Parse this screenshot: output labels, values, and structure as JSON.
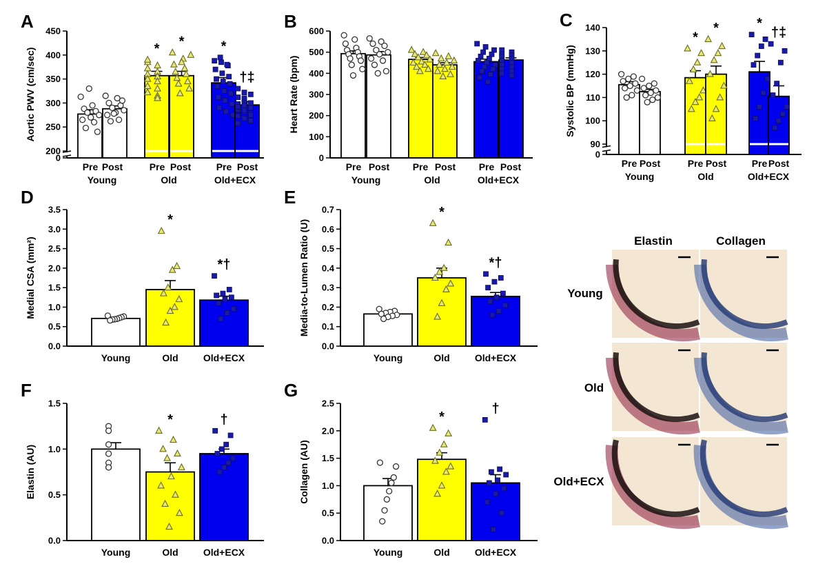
{
  "colors": {
    "Young": "#ffffff",
    "Old": "#ffff00",
    "Old+ECX": "#0000ee",
    "pt_Young": "#ffffff",
    "pt_Old": "#c8c85a",
    "pt_Old+ECX": "#1a1aa8",
    "elastin_stain": "#8a1c3c",
    "collagen_stain": "#3a5aa0",
    "tissue_bg": "#f3e7d4"
  },
  "histology": {
    "col_labels": [
      "Elastin",
      "Collagen"
    ],
    "row_labels": [
      "Young",
      "Old",
      "Old+ECX"
    ]
  },
  "chart_data": [
    {
      "panel": "A",
      "type": "bar",
      "grouped": true,
      "groups": [
        "Young",
        "Old",
        "Old+ECX"
      ],
      "conditions": [
        "Pre",
        "Post"
      ],
      "ylabel": "Aortic PWV (cm/sec)",
      "ylim": [
        200,
        450
      ],
      "yticks": [
        200,
        250,
        300,
        350,
        400,
        450
      ],
      "axis_zero_label": "0",
      "axis_break": true,
      "series": [
        {
          "group": "Young",
          "condition": "Pre",
          "mean": 277,
          "sem": 9,
          "points": [
            313,
            295,
            288,
            283,
            280,
            275,
            270,
            265,
            260,
            248,
            240,
            330
          ]
        },
        {
          "group": "Young",
          "condition": "Post",
          "mean": 288,
          "sem": 6,
          "points": [
            315,
            310,
            300,
            295,
            290,
            285,
            280,
            275,
            265,
            262,
            305,
            278
          ]
        },
        {
          "group": "Old",
          "condition": "Pre",
          "mean": 357,
          "sem": 9,
          "points": [
            385,
            378,
            372,
            365,
            360,
            355,
            350,
            345,
            335,
            330,
            322,
            315,
            390,
            310
          ]
        },
        {
          "group": "Old",
          "condition": "Post",
          "mean": 357,
          "sem": 9,
          "points": [
            405,
            392,
            380,
            372,
            365,
            360,
            352,
            345,
            340,
            330,
            320,
            400,
            385
          ]
        },
        {
          "group": "Old+ECX",
          "condition": "Pre",
          "mean": 342,
          "sem": 11,
          "points": [
            388,
            385,
            378,
            370,
            362,
            355,
            350,
            345,
            340,
            335,
            325,
            320,
            312,
            305,
            298,
            290,
            282,
            275,
            395,
            380
          ]
        },
        {
          "group": "Old+ECX",
          "condition": "Post",
          "mean": 296,
          "sem": 7,
          "points": [
            330,
            322,
            318,
            312,
            305,
            300,
            298,
            295,
            290,
            286,
            282,
            278,
            273,
            268,
            263,
            258,
            310,
            300,
            292,
            285,
            275
          ]
        }
      ],
      "significance": [
        {
          "group": "Old",
          "condition": "Pre",
          "text": "*"
        },
        {
          "group": "Old",
          "condition": "Post",
          "text": "*"
        },
        {
          "group": "Old+ECX",
          "condition": "Pre",
          "text": "*"
        },
        {
          "group": "Old+ECX",
          "condition": "Post",
          "text": "†‡"
        }
      ]
    },
    {
      "panel": "B",
      "type": "bar",
      "grouped": true,
      "groups": [
        "Young",
        "Old",
        "Old+ECX"
      ],
      "conditions": [
        "Pre",
        "Post"
      ],
      "ylabel": "Heart Rate (bpm)",
      "ylim": [
        0,
        600
      ],
      "yticks": [
        0,
        100,
        200,
        300,
        400,
        500,
        600
      ],
      "series": [
        {
          "group": "Young",
          "condition": "Pre",
          "mean": 493,
          "sem": 13,
          "points": [
            580,
            560,
            540,
            520,
            510,
            500,
            490,
            480,
            470,
            460,
            440,
            420,
            390
          ]
        },
        {
          "group": "Young",
          "condition": "Post",
          "mean": 487,
          "sem": 16,
          "points": [
            565,
            550,
            540,
            530,
            510,
            500,
            490,
            470,
            460,
            440,
            410,
            400
          ]
        },
        {
          "group": "Old",
          "condition": "Pre",
          "mean": 466,
          "sem": 9,
          "points": [
            510,
            500,
            490,
            485,
            475,
            465,
            455,
            450,
            440,
            430,
            420,
            410
          ]
        },
        {
          "group": "Old",
          "condition": "Post",
          "mean": 440,
          "sem": 10,
          "points": [
            495,
            480,
            470,
            460,
            450,
            440,
            430,
            420,
            410,
            395,
            385
          ]
        },
        {
          "group": "Old+ECX",
          "condition": "Pre",
          "mean": 455,
          "sem": 12,
          "points": [
            540,
            525,
            510,
            500,
            490,
            480,
            470,
            460,
            450,
            440,
            430,
            420,
            410,
            395,
            380,
            360
          ]
        },
        {
          "group": "Old+ECX",
          "condition": "Post",
          "mean": 463,
          "sem": 10,
          "points": [
            510,
            500,
            490,
            485,
            480,
            470,
            460,
            450,
            440,
            430,
            420,
            410,
            400,
            390
          ]
        }
      ]
    },
    {
      "panel": "C",
      "type": "bar",
      "grouped": true,
      "groups": [
        "Young",
        "Old",
        "Old+ECX"
      ],
      "conditions": [
        "Pre",
        "Post"
      ],
      "ylabel": "Systolic BP (mmHg)",
      "ylim": [
        90,
        140
      ],
      "yticks": [
        90,
        100,
        110,
        120,
        130,
        140
      ],
      "axis_zero_label": "0",
      "axis_break": true,
      "series": [
        {
          "group": "Young",
          "condition": "Pre",
          "mean": 115.5,
          "sem": 1.3,
          "points": [
            120,
            119,
            118,
            117,
            116,
            115,
            114,
            113,
            111,
            110
          ]
        },
        {
          "group": "Young",
          "condition": "Post",
          "mean": 112.5,
          "sem": 1.0,
          "points": [
            118,
            116,
            115,
            114,
            113,
            112,
            111,
            110,
            109,
            108
          ]
        },
        {
          "group": "Old",
          "condition": "Pre",
          "mean": 118.5,
          "sem": 3.0,
          "points": [
            131,
            129,
            125,
            122,
            117,
            113,
            110,
            108,
            105
          ]
        },
        {
          "group": "Old",
          "condition": "Post",
          "mean": 120,
          "sem": 3.5,
          "points": [
            135,
            132,
            129,
            126,
            120,
            115,
            110,
            105,
            101
          ]
        },
        {
          "group": "Old+ECX",
          "condition": "Pre",
          "mean": 121,
          "sem": 4.5,
          "points": [
            137,
            135,
            132,
            128,
            124,
            118,
            112,
            106,
            101
          ]
        },
        {
          "group": "Old+ECX",
          "condition": "Post",
          "mean": 110.5,
          "sem": 4.5,
          "points": [
            133,
            130,
            125,
            116,
            111,
            106,
            103,
            100,
            97
          ]
        }
      ],
      "significance": [
        {
          "group": "Old",
          "condition": "Pre",
          "text": "*"
        },
        {
          "group": "Old",
          "condition": "Post",
          "text": "*"
        },
        {
          "group": "Old+ECX",
          "condition": "Pre",
          "text": "*"
        },
        {
          "group": "Old+ECX",
          "condition": "Post",
          "text": "†‡"
        }
      ]
    },
    {
      "panel": "D",
      "type": "bar",
      "categories": [
        "Young",
        "Old",
        "Old+ECX"
      ],
      "ylabel": "Medial CSA (mm²)",
      "ylim": [
        0,
        3.5
      ],
      "yticks": [
        "0.0",
        "0.5",
        "1.0",
        "1.5",
        "2.0",
        "2.5",
        "3.0",
        "3.5"
      ],
      "series": [
        {
          "group": "Young",
          "mean": 0.71,
          "sem": 0.03,
          "points": [
            0.78,
            0.76,
            0.74,
            0.72,
            0.7,
            0.69,
            0.68,
            0.66
          ]
        },
        {
          "group": "Old",
          "mean": 1.45,
          "sem": 0.23,
          "points": [
            2.95,
            2.05,
            1.95,
            1.5,
            1.35,
            1.2,
            1.0,
            0.9,
            0.6
          ]
        },
        {
          "group": "Old+ECX",
          "mean": 1.18,
          "sem": 0.1,
          "points": [
            1.8,
            1.45,
            1.35,
            1.3,
            1.25,
            1.2,
            1.1,
            0.95,
            0.85,
            0.7
          ]
        }
      ],
      "significance": [
        {
          "group": "Old",
          "text": "*"
        },
        {
          "group": "Old+ECX",
          "text": "*†"
        }
      ]
    },
    {
      "panel": "E",
      "type": "bar",
      "categories": [
        "Young",
        "Old",
        "Old+ECX"
      ],
      "ylabel": "Media-to-Lumen Ratio (U)",
      "ylim": [
        0,
        0.7
      ],
      "yticks": [
        "0.0",
        "0.1",
        "0.2",
        "0.3",
        "0.4",
        "0.5",
        "0.6",
        "0.7"
      ],
      "series": [
        {
          "group": "Young",
          "mean": 0.165,
          "sem": 0.007,
          "points": [
            0.19,
            0.18,
            0.175,
            0.17,
            0.165,
            0.16,
            0.155,
            0.15,
            0.14
          ]
        },
        {
          "group": "Old",
          "mean": 0.35,
          "sem": 0.05,
          "points": [
            0.63,
            0.53,
            0.4,
            0.38,
            0.35,
            0.32,
            0.29,
            0.22,
            0.15
          ]
        },
        {
          "group": "Old+ECX",
          "mean": 0.255,
          "sem": 0.02,
          "points": [
            0.37,
            0.35,
            0.33,
            0.3,
            0.27,
            0.25,
            0.23,
            0.21,
            0.18,
            0.16
          ]
        }
      ],
      "significance": [
        {
          "group": "Old",
          "text": "*"
        },
        {
          "group": "Old+ECX",
          "text": "*†"
        }
      ]
    },
    {
      "panel": "F",
      "type": "bar",
      "categories": [
        "Young",
        "Old",
        "Old+ECX"
      ],
      "ylabel": "Elastin (AU)",
      "ylim": [
        0,
        1.5
      ],
      "yticks": [
        "0.0",
        "0.5",
        "1.0",
        "1.5"
      ],
      "series": [
        {
          "group": "Young",
          "mean": 1.0,
          "sem": 0.07,
          "points": [
            1.25,
            1.2,
            1.05,
            0.95,
            0.85,
            0.8,
            0.8
          ]
        },
        {
          "group": "Old",
          "mean": 0.75,
          "sem": 0.1,
          "points": [
            1.2,
            1.1,
            1.0,
            0.95,
            0.9,
            0.8,
            0.7,
            0.6,
            0.5,
            0.4,
            0.3,
            0.15
          ]
        },
        {
          "group": "Old+ECX",
          "mean": 0.95,
          "sem": 0.05,
          "points": [
            1.2,
            1.15,
            1.05,
            1.0,
            0.95,
            0.9,
            0.85,
            0.8,
            0.75
          ]
        }
      ],
      "significance": [
        {
          "group": "Old",
          "text": "*"
        },
        {
          "group": "Old+ECX",
          "text": "†"
        }
      ]
    },
    {
      "panel": "G",
      "type": "bar",
      "categories": [
        "Young",
        "Old",
        "Old+ECX"
      ],
      "ylabel": "Collagen (AU)",
      "ylim": [
        0,
        2.5
      ],
      "yticks": [
        "0.0",
        "0.5",
        "1.0",
        "1.5",
        "2.0",
        "2.5"
      ],
      "series": [
        {
          "group": "Young",
          "mean": 1.0,
          "sem": 0.13,
          "points": [
            1.42,
            1.35,
            1.15,
            1.05,
            0.9,
            0.75,
            0.55,
            0.35
          ]
        },
        {
          "group": "Old",
          "mean": 1.48,
          "sem": 0.12,
          "points": [
            2.05,
            1.95,
            1.75,
            1.6,
            1.45,
            1.35,
            1.25,
            1.0,
            0.85
          ]
        },
        {
          "group": "Old+ECX",
          "mean": 1.05,
          "sem": 0.15,
          "points": [
            2.2,
            1.3,
            1.25,
            1.2,
            1.1,
            1.05,
            0.95,
            0.85,
            0.7,
            0.5,
            0.2
          ]
        }
      ],
      "significance": [
        {
          "group": "Old",
          "text": "*"
        },
        {
          "group": "Old+ECX",
          "text": "†"
        }
      ]
    }
  ]
}
